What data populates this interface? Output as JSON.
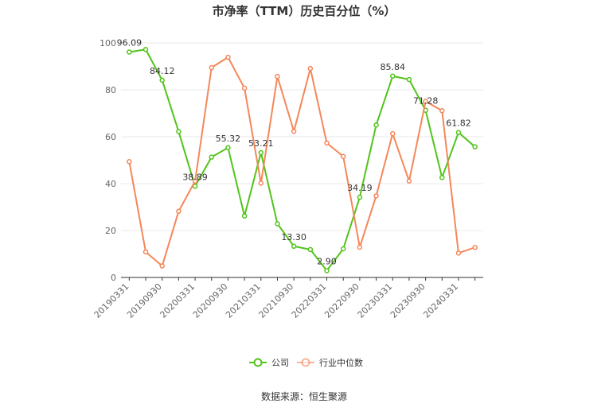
{
  "chart_data": {
    "type": "line",
    "title": "市净率（TTM）历史百分位（%）",
    "x": [
      "20190331",
      "20190630",
      "20190930",
      "20191231",
      "20200331",
      "20200630",
      "20200930",
      "20201231",
      "20210331",
      "20210630",
      "20210930",
      "20211231",
      "20220331",
      "20220630",
      "20220930",
      "20221231",
      "20230331",
      "20230630",
      "20230930",
      "20231231",
      "20240331",
      "20240630"
    ],
    "x_tick_labels": [
      "20190331",
      "20190930",
      "20200331",
      "20200930",
      "20210331",
      "20210930",
      "20220331",
      "20220930",
      "20230331",
      "20230930",
      "20240331"
    ],
    "ylim": [
      0,
      100
    ],
    "y_ticks": [
      0,
      20,
      40,
      60,
      80,
      100
    ],
    "grid": true,
    "legend_position": "bottom",
    "series": [
      {
        "name": "公司",
        "color": "#52c41a",
        "values": [
          96.09,
          97.2,
          84.12,
          62.2,
          38.89,
          51.3,
          55.32,
          26.2,
          53.21,
          22.9,
          13.3,
          11.9,
          2.9,
          12.2,
          34.19,
          65.0,
          85.84,
          84.4,
          71.28,
          42.6,
          61.82,
          55.7
        ],
        "data_labels": {
          "0": "96.09",
          "2": "84.12",
          "4": "38.89",
          "6": "55.32",
          "8": "53.21",
          "10": "13.30",
          "12": "2.90",
          "14": "34.19",
          "16": "85.84",
          "18": "71.28",
          "20": "61.82"
        }
      },
      {
        "name": "行业中位数",
        "color": "#f4875a",
        "values": [
          49.4,
          10.9,
          4.9,
          28.2,
          41.1,
          89.5,
          93.9,
          80.7,
          40.2,
          85.7,
          62.3,
          89.1,
          57.3,
          51.6,
          12.9,
          34.8,
          61.3,
          41.1,
          75.1,
          71.1,
          10.4,
          12.8
        ]
      }
    ]
  },
  "source": "数据来源：恒生聚源"
}
